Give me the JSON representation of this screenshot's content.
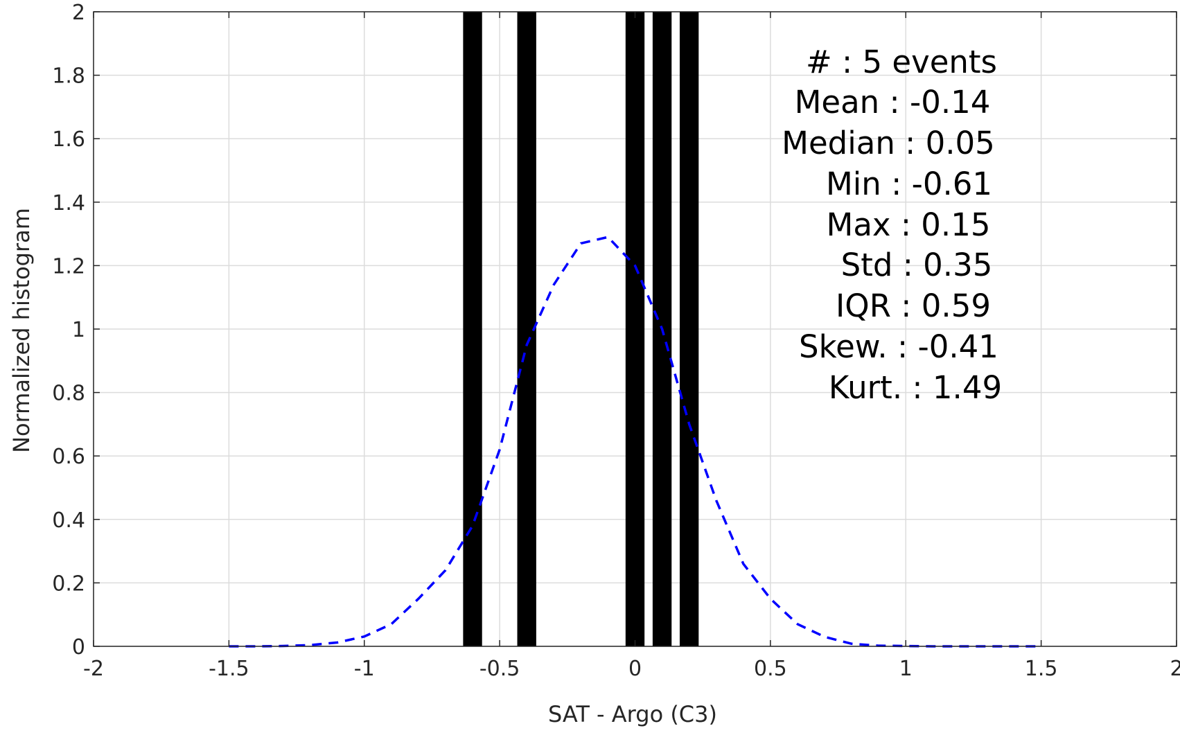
{
  "chart_data": {
    "type": "bar",
    "title": "",
    "xlabel": "SAT - Argo (C3)",
    "ylabel": "Normalized histogram",
    "xlim": [
      -2,
      2
    ],
    "ylim": [
      0,
      2
    ],
    "grid": true,
    "x_ticks": [
      -2,
      -1.5,
      -1,
      -0.5,
      0,
      0.5,
      1,
      1.5,
      2
    ],
    "x_tick_labels": [
      "-2",
      "-1.5",
      "-1",
      "-0.5",
      "0",
      "0.5",
      "1",
      "1.5",
      "2"
    ],
    "y_ticks": [
      0,
      0.2,
      0.4,
      0.6,
      0.8,
      1,
      1.2,
      1.4,
      1.6,
      1.8,
      2
    ],
    "y_tick_labels": [
      "0",
      "0.2",
      "0.4",
      "0.6",
      "0.8",
      "1",
      "1.2",
      "1.4",
      "1.6",
      "1.8",
      "2"
    ],
    "bars": {
      "color": "#000000",
      "width": 0.07,
      "centers": [
        -0.6,
        -0.4,
        0.0,
        0.1,
        0.2
      ],
      "values": [
        2,
        2,
        2,
        2,
        2
      ]
    },
    "curve": {
      "color": "#0000ff",
      "style": "dashed",
      "x": [
        -1.5,
        -1.4,
        -1.3,
        -1.2,
        -1.1,
        -1.0,
        -0.9,
        -0.8,
        -0.7,
        -0.6,
        -0.5,
        -0.4,
        -0.3,
        -0.2,
        -0.1,
        0.0,
        0.1,
        0.2,
        0.3,
        0.4,
        0.5,
        0.6,
        0.7,
        0.8,
        0.9,
        1.0,
        1.1,
        1.2,
        1.3,
        1.4,
        1.5
      ],
      "y": [
        0.0,
        0.0,
        0.001,
        0.004,
        0.012,
        0.031,
        0.07,
        0.15,
        0.24,
        0.38,
        0.62,
        0.95,
        1.14,
        1.27,
        1.29,
        1.2,
        1.0,
        0.7,
        0.46,
        0.26,
        0.15,
        0.07,
        0.03,
        0.008,
        0.002,
        0.001,
        0.0,
        0.0,
        0.0,
        0.0,
        0.0
      ]
    },
    "annotations": [
      "#  : 5 events",
      "Mean : -0.14",
      "Median : 0.05",
      "Min : -0.61",
      "Max : 0.15",
      "Std : 0.35",
      "IQR : 0.59",
      "Skew. : -0.41",
      "Kurt. : 1.49"
    ]
  }
}
